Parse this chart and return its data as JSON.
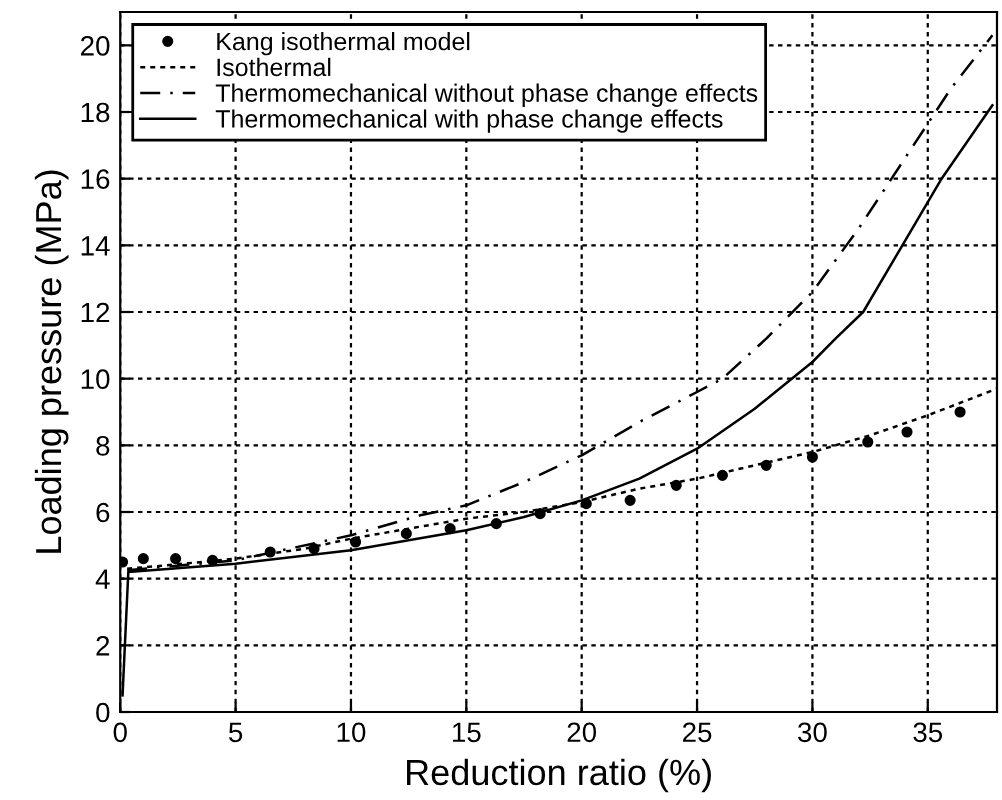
{
  "chart_data": {
    "type": "line",
    "xlabel": "Reduction ratio (%)",
    "ylabel": "Loading pressure (MPa)",
    "xlim": [
      0,
      38
    ],
    "ylim": [
      0,
      21
    ],
    "xticks": [
      0,
      5,
      10,
      15,
      20,
      25,
      30,
      35
    ],
    "yticks": [
      0,
      2,
      4,
      6,
      8,
      10,
      12,
      14,
      16,
      18,
      20
    ],
    "grid": true,
    "legend": "top left",
    "series": [
      {
        "name": "Kang isothermal model",
        "type": "scatter",
        "marker": "circle",
        "color": "#000000",
        "x": [
          0.1,
          1,
          2.4,
          4,
          6.5,
          8.4,
          10.2,
          12.4,
          14.3,
          16.3,
          18.2,
          20.2,
          22.1,
          24.1,
          26.1,
          28,
          30,
          32.4,
          34.1,
          36.4
        ],
        "values": [
          4.5,
          4.6,
          4.6,
          4.55,
          4.8,
          4.9,
          5.1,
          5.35,
          5.5,
          5.65,
          5.95,
          6.25,
          6.35,
          6.8,
          7.1,
          7.4,
          7.65,
          8.1,
          8.4,
          9.0
        ]
      },
      {
        "name": "Isothermal",
        "line_style": "dotted",
        "color": "#000000",
        "x": [
          0.3,
          2,
          5,
          8,
          10,
          12.5,
          15,
          17.5,
          20,
          22.5,
          25,
          27.5,
          30,
          32.5,
          35,
          38
        ],
        "values": [
          4.3,
          4.4,
          4.6,
          4.9,
          5.2,
          5.5,
          5.8,
          6.0,
          6.3,
          6.7,
          7.0,
          7.4,
          7.8,
          8.3,
          8.9,
          9.7
        ]
      },
      {
        "name": "Thermomechanical without phase change effects",
        "line_style": "dashdot",
        "color": "#000000",
        "x": [
          0.3,
          5,
          10,
          13,
          15,
          17.5,
          20,
          22.5,
          25,
          26.1,
          28,
          30,
          32,
          34,
          36,
          37.8
        ],
        "values": [
          4.25,
          4.55,
          5.3,
          5.9,
          6.2,
          6.9,
          7.7,
          8.7,
          9.6,
          10,
          11.2,
          12.6,
          14.5,
          16.6,
          18.7,
          20.3
        ]
      },
      {
        "name": "Thermomechanical with phase change effects",
        "line_style": "solid",
        "color": "#000000",
        "x": [
          0.1,
          0.35,
          5,
          10,
          15,
          17.5,
          20,
          22.5,
          25,
          27.5,
          30,
          31,
          32.2,
          33.9,
          35.6,
          37.8
        ],
        "values": [
          0.5,
          4.2,
          4.45,
          4.85,
          5.45,
          5.85,
          6.35,
          7.0,
          7.9,
          9.1,
          10.5,
          11.2,
          12,
          14,
          16,
          18.2
        ]
      }
    ]
  }
}
